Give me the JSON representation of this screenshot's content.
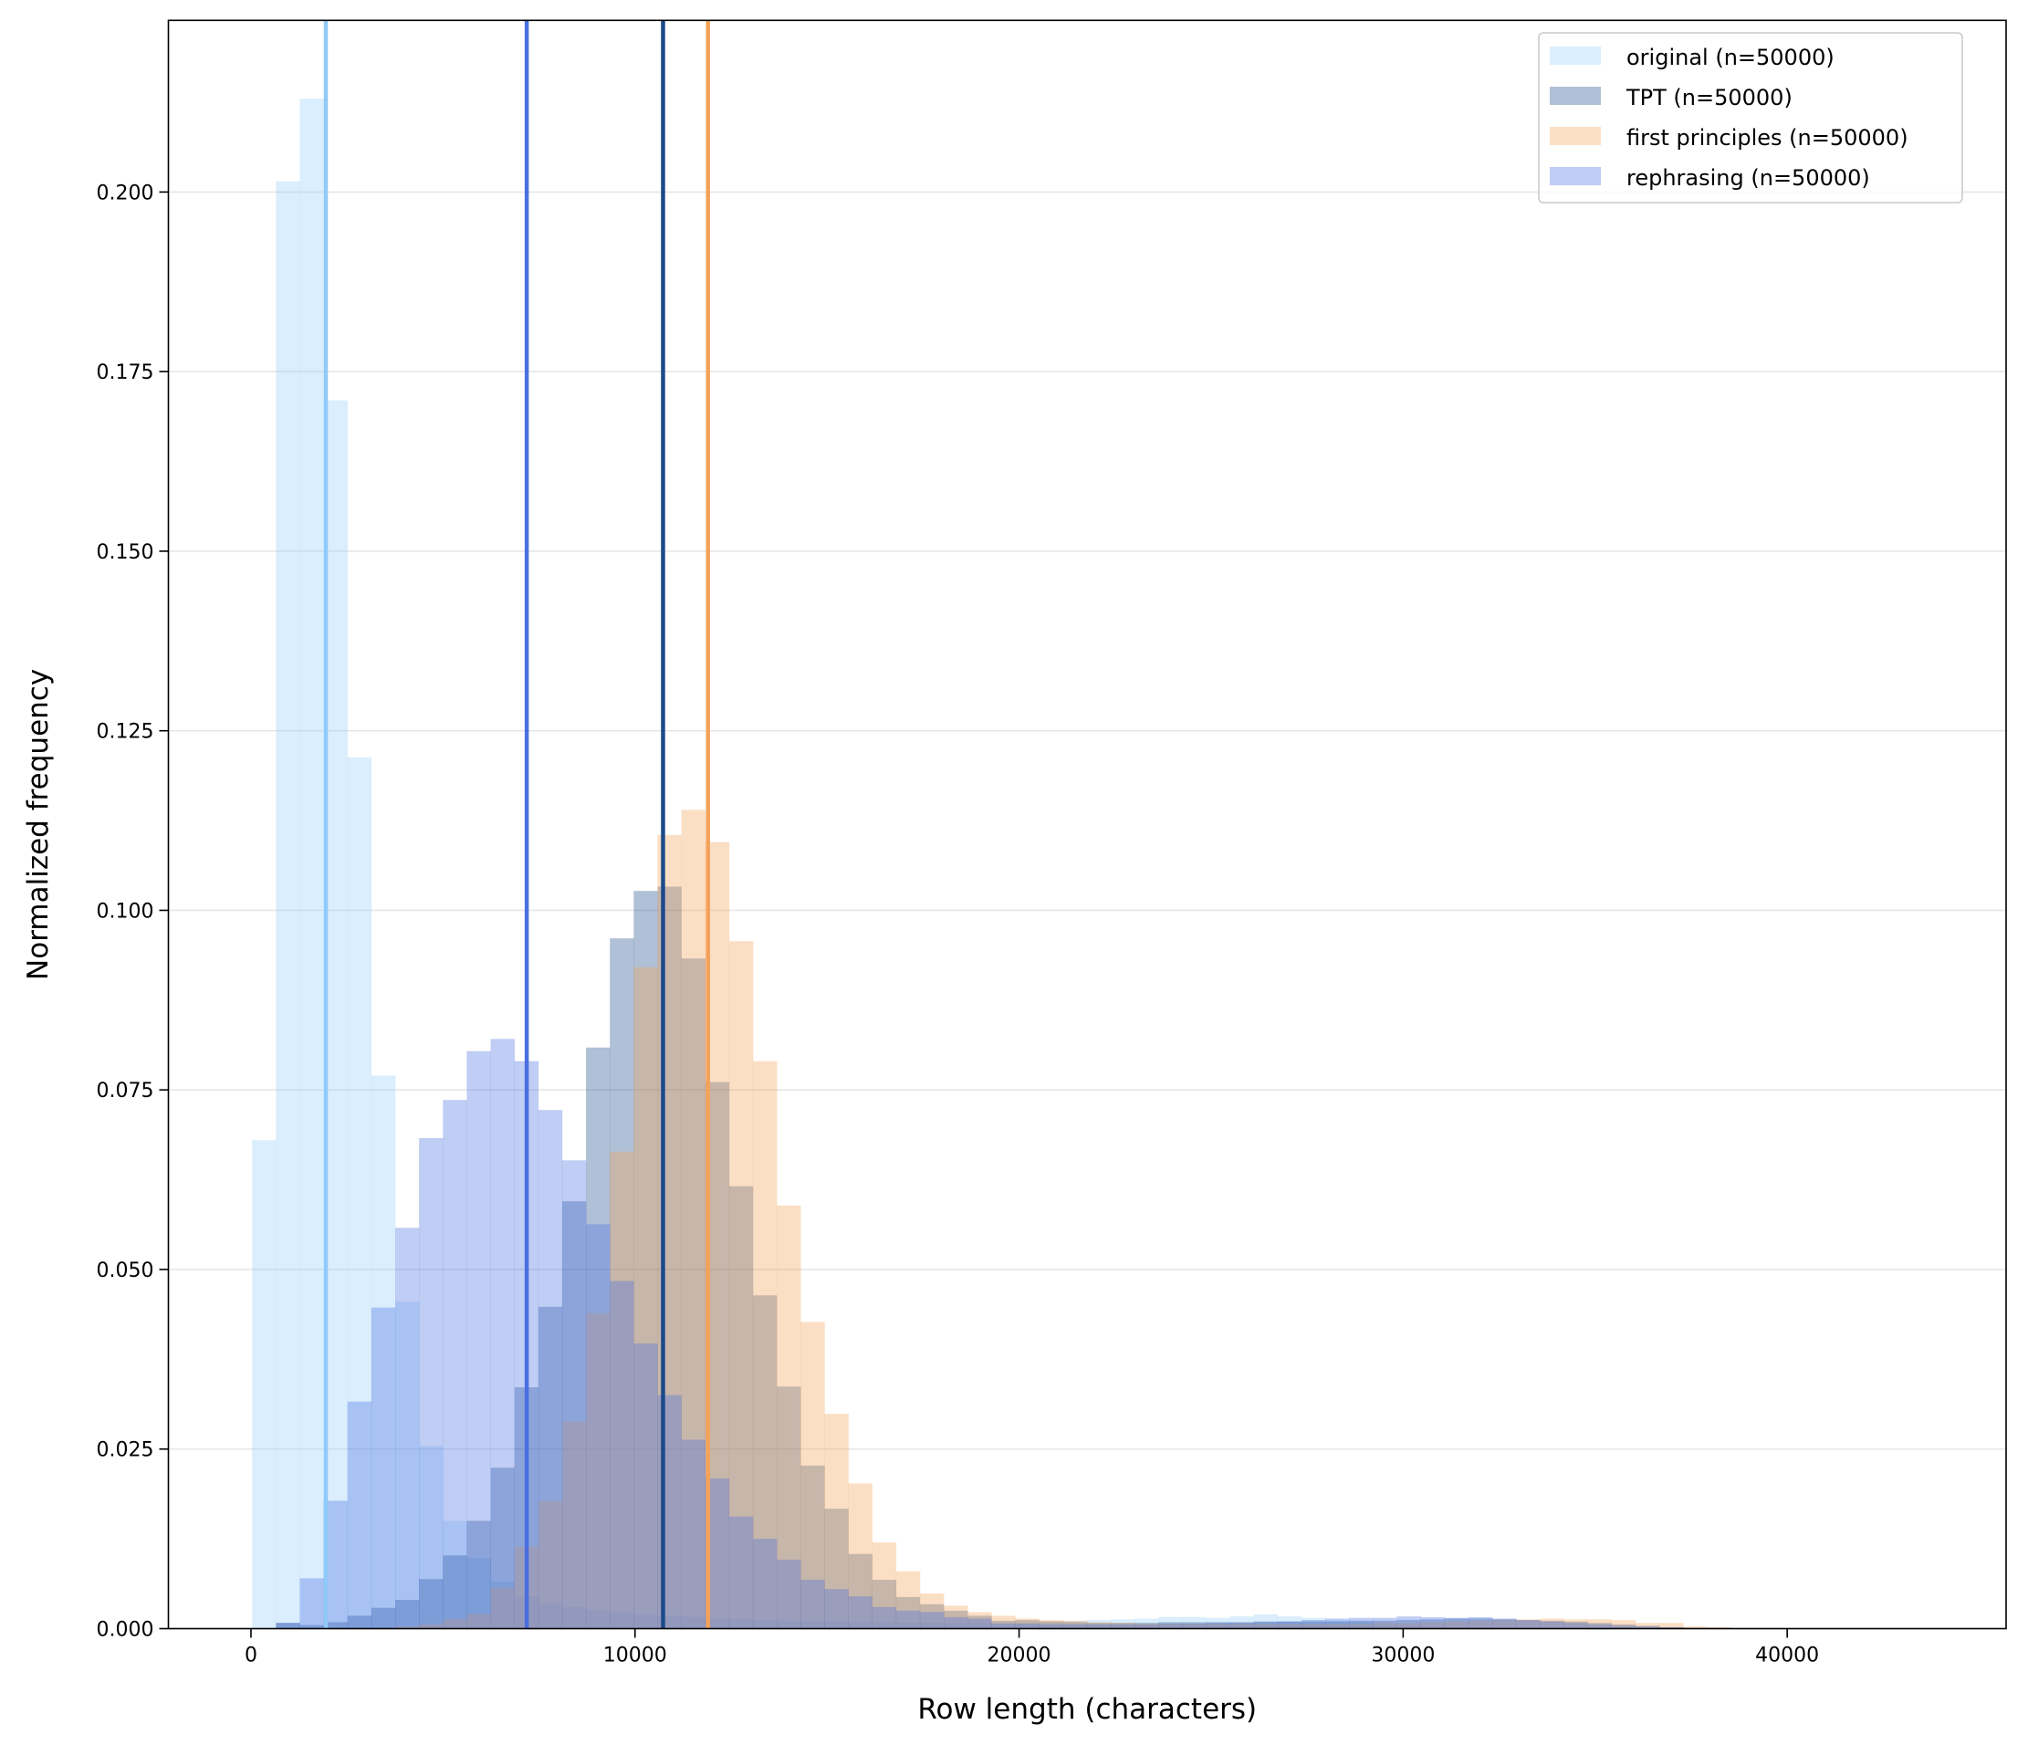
{
  "chart_data": {
    "type": "histogram",
    "title": "",
    "xlabel": "Row length (characters)",
    "ylabel": "Normalized frequency",
    "xlim": [
      -2150,
      45700
    ],
    "ylim": [
      0,
      0.2239
    ],
    "xticks": [
      0,
      10000,
      20000,
      30000,
      40000
    ],
    "xtick_labels": [
      "0",
      "10000",
      "20000",
      "30000",
      "40000"
    ],
    "yticks": [
      0,
      0.025,
      0.05,
      0.075,
      0.1,
      0.125,
      0.15,
      0.175,
      0.2
    ],
    "ytick_labels": [
      "0.000",
      "0.025",
      "0.050",
      "0.075",
      "0.100",
      "0.125",
      "0.150",
      "0.175",
      "0.200"
    ],
    "grid": "horizontal",
    "legend_position": "top-right",
    "bin_start": 30,
    "bin_width": 621,
    "series": [
      {
        "name": "original (n=50000)",
        "color": "#90caf9",
        "mean": 1950,
        "values": [
          0.068,
          0.2015,
          0.213,
          0.171,
          0.1213,
          0.077,
          0.0455,
          0.0254,
          0.015,
          0.0098,
          0.0065,
          0.0045,
          0.0035,
          0.003,
          0.0026,
          0.0023,
          0.002,
          0.0018,
          0.0016,
          0.0014,
          0.0013,
          0.0012,
          0.0011,
          0.001,
          0.001,
          0.0009,
          0.0009,
          0.0008,
          0.0008,
          0.0008,
          0.0008,
          0.0009,
          0.0009,
          0.001,
          0.0011,
          0.0012,
          0.0013,
          0.0014,
          0.0016,
          0.0016,
          0.0015,
          0.0017,
          0.002,
          0.0017,
          0.0015,
          0.0012,
          0.0009,
          0.0006,
          0.0004,
          0.0003,
          0.0002,
          0.0002,
          0.0001,
          0.0001,
          0.0001,
          0.0001,
          0.0001,
          0.0001,
          0,
          0,
          0,
          0,
          0,
          0,
          0,
          0,
          0,
          0,
          0,
          0
        ]
      },
      {
        "name": "TPT (n=50000)",
        "color": "#1c4a8a",
        "mean": 10730,
        "values": [
          0,
          0.0008,
          0.0005,
          0.0009,
          0.0018,
          0.0029,
          0.004,
          0.0069,
          0.0102,
          0.015,
          0.0224,
          0.0336,
          0.0448,
          0.0595,
          0.0809,
          0.0961,
          0.1027,
          0.1033,
          0.0933,
          0.0761,
          0.0616,
          0.0464,
          0.0337,
          0.0227,
          0.0167,
          0.0104,
          0.0068,
          0.0044,
          0.0034,
          0.0025,
          0.0018,
          0.0011,
          0.0012,
          0.001,
          0.0009,
          0.0008,
          0.0008,
          0.0008,
          0.0009,
          0.0009,
          0.0009,
          0.0009,
          0.001,
          0.001,
          0.001,
          0.001,
          0.0011,
          0.0011,
          0.0012,
          0.0013,
          0.0014,
          0.0014,
          0.0013,
          0.0012,
          0.0011,
          0.001,
          0.0008,
          0.0006,
          0.0004,
          0.0002,
          0.0001,
          0.0001,
          0,
          0,
          0,
          0,
          0,
          0,
          0,
          0
        ]
      },
      {
        "name": "first principles (n=50000)",
        "color": "#f4a25a",
        "mean": 11900,
        "values": [
          0,
          0,
          0,
          0,
          0,
          0,
          0.0003,
          0.0006,
          0.0013,
          0.002,
          0.0057,
          0.0114,
          0.0178,
          0.0288,
          0.0439,
          0.0664,
          0.0921,
          0.1105,
          0.114,
          0.1095,
          0.0957,
          0.079,
          0.0589,
          0.0427,
          0.0299,
          0.0202,
          0.012,
          0.008,
          0.0049,
          0.0032,
          0.0023,
          0.0018,
          0.0014,
          0.0012,
          0.0011,
          0.0009,
          0.0008,
          0.0007,
          0.0007,
          0.0007,
          0.0007,
          0.0007,
          0.0007,
          0.0007,
          0.0007,
          0.0007,
          0.0007,
          0.0008,
          0.0008,
          0.0009,
          0.001,
          0.0011,
          0.0012,
          0.0013,
          0.0014,
          0.0013,
          0.0013,
          0.0012,
          0.0008,
          0.0008,
          0.0003,
          0.0002,
          0.0001,
          0.0001,
          0,
          0,
          0,
          0,
          0,
          0
        ]
      },
      {
        "name": "rephrasing (n=50000)",
        "color": "#4a6fe0",
        "mean": 7180,
        "values": [
          0,
          0.0008,
          0.007,
          0.0178,
          0.0316,
          0.0447,
          0.0558,
          0.0683,
          0.0736,
          0.0804,
          0.0821,
          0.079,
          0.0722,
          0.0652,
          0.0563,
          0.0484,
          0.0397,
          0.0325,
          0.0263,
          0.0209,
          0.0156,
          0.0125,
          0.0096,
          0.0068,
          0.0055,
          0.0045,
          0.003,
          0.0025,
          0.0023,
          0.0016,
          0.0014,
          0.0007,
          0.0007,
          0.0006,
          0.0006,
          0.0006,
          0.0006,
          0.0006,
          0.0007,
          0.0007,
          0.0008,
          0.0008,
          0.0009,
          0.001,
          0.0012,
          0.0014,
          0.0015,
          0.0015,
          0.0017,
          0.0016,
          0.0015,
          0.0016,
          0.0014,
          0.0012,
          0.001,
          0.0008,
          0.0006,
          0.0004,
          0.0003,
          0.0002,
          0.0001,
          0.0001,
          0,
          0,
          0,
          0,
          0,
          0,
          0,
          0
        ]
      }
    ]
  }
}
